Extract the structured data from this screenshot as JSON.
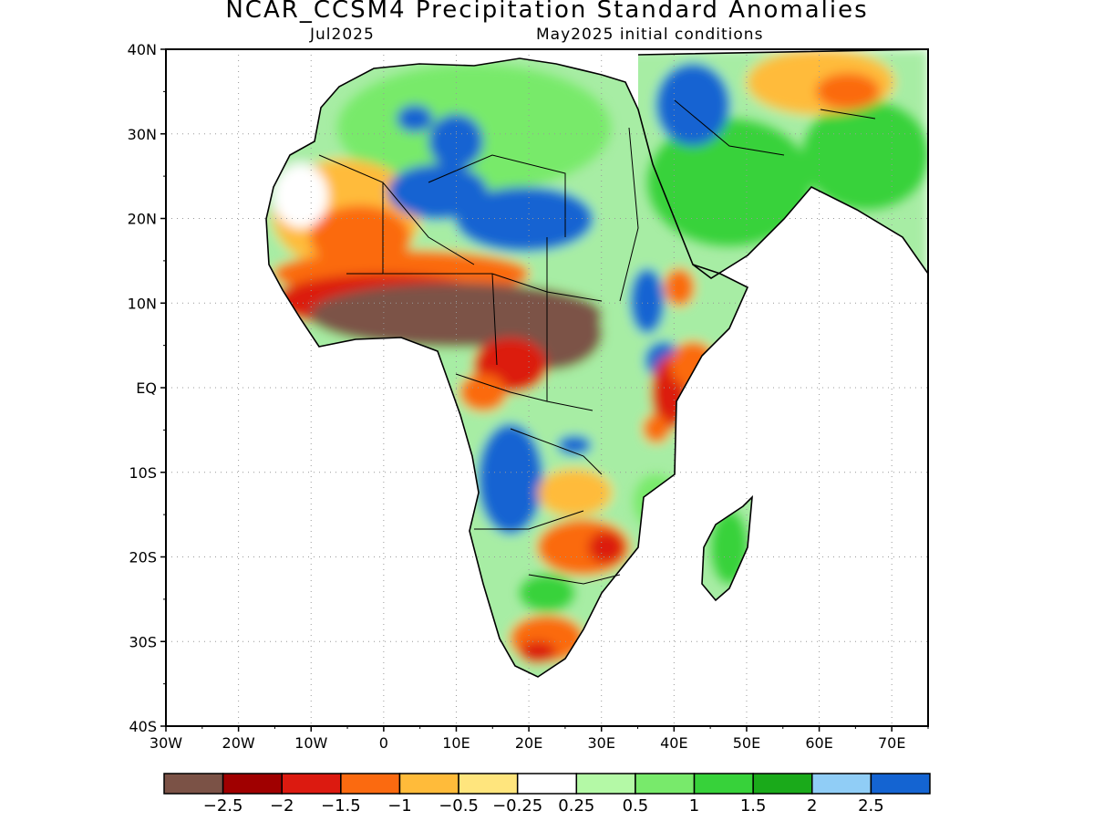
{
  "title": "NCAR_CCSM4 Precipitation Standard Anomalies",
  "subtitle_left": "Jul2025",
  "subtitle_right": "May2025 initial conditions",
  "map": {
    "region": "Africa and Middle East",
    "lon_range": [
      -30,
      75
    ],
    "lat_range": [
      -40,
      40
    ],
    "grid": true,
    "lon_labels": [
      "30W",
      "20W",
      "10W",
      "0",
      "10E",
      "20E",
      "30E",
      "40E",
      "50E",
      "60E",
      "70E"
    ],
    "lat_labels": [
      "40N",
      "30N",
      "20N",
      "10N",
      "EQ",
      "10S",
      "20S",
      "30S",
      "40S"
    ]
  },
  "colorbar": {
    "colors": [
      "#7b5246",
      "#a00000",
      "#dc1a10",
      "#fb6a10",
      "#ffbb3a",
      "#ffe57d",
      "#ffffff",
      "#b4f9a6",
      "#78ea6b",
      "#37d23a",
      "#1aaa1a",
      "#90cdf6",
      "#1464d2"
    ],
    "labels": [
      "−2.5",
      "−2",
      "−1.5",
      "−1",
      "−0.5",
      "−0.25",
      "0.25",
      "0.5",
      "1",
      "1.5",
      "2",
      "2.5"
    ]
  }
}
